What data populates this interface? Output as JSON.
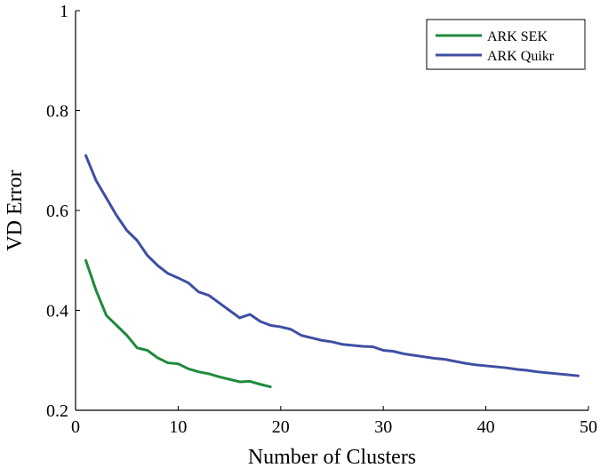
{
  "chart_data": {
    "type": "line",
    "xlabel": "Number of Clusters",
    "ylabel": "VD Error",
    "xlim": [
      0,
      50
    ],
    "ylim": [
      0.2,
      1.0
    ],
    "x_ticks": [
      "0",
      "10",
      "20",
      "30",
      "40",
      "50"
    ],
    "y_ticks": [
      "0.2",
      "0.4",
      "0.6",
      "0.8",
      "1"
    ],
    "grid": false,
    "legend_position": "top-right",
    "series": [
      {
        "name": "ARK SEK",
        "color": "#1f8a3c",
        "x": [
          1,
          2,
          3,
          4,
          5,
          6,
          7,
          8,
          9,
          10,
          11,
          12,
          13,
          14,
          15,
          16,
          17,
          18,
          19
        ],
        "values": [
          0.5,
          0.44,
          0.39,
          0.37,
          0.35,
          0.325,
          0.32,
          0.305,
          0.295,
          0.293,
          0.283,
          0.277,
          0.273,
          0.267,
          0.262,
          0.257,
          0.258,
          0.252,
          0.247
        ]
      },
      {
        "name": "ARK Quikr",
        "color": "#3e4fa3",
        "x": [
          1,
          2,
          3,
          4,
          5,
          6,
          7,
          8,
          9,
          10,
          11,
          12,
          13,
          14,
          15,
          16,
          17,
          18,
          19,
          20,
          21,
          22,
          23,
          24,
          25,
          26,
          27,
          28,
          29,
          30,
          31,
          32,
          33,
          34,
          35,
          36,
          37,
          38,
          39,
          40,
          41,
          42,
          43,
          44,
          45,
          46,
          47,
          48,
          49
        ],
        "values": [
          0.71,
          0.66,
          0.625,
          0.59,
          0.56,
          0.54,
          0.51,
          0.49,
          0.474,
          0.465,
          0.455,
          0.437,
          0.43,
          0.415,
          0.4,
          0.385,
          0.392,
          0.378,
          0.37,
          0.367,
          0.362,
          0.35,
          0.345,
          0.34,
          0.337,
          0.332,
          0.33,
          0.328,
          0.327,
          0.32,
          0.318,
          0.313,
          0.31,
          0.307,
          0.304,
          0.302,
          0.298,
          0.294,
          0.291,
          0.289,
          0.287,
          0.285,
          0.282,
          0.28,
          0.277,
          0.275,
          0.273,
          0.271,
          0.269
        ]
      }
    ]
  }
}
